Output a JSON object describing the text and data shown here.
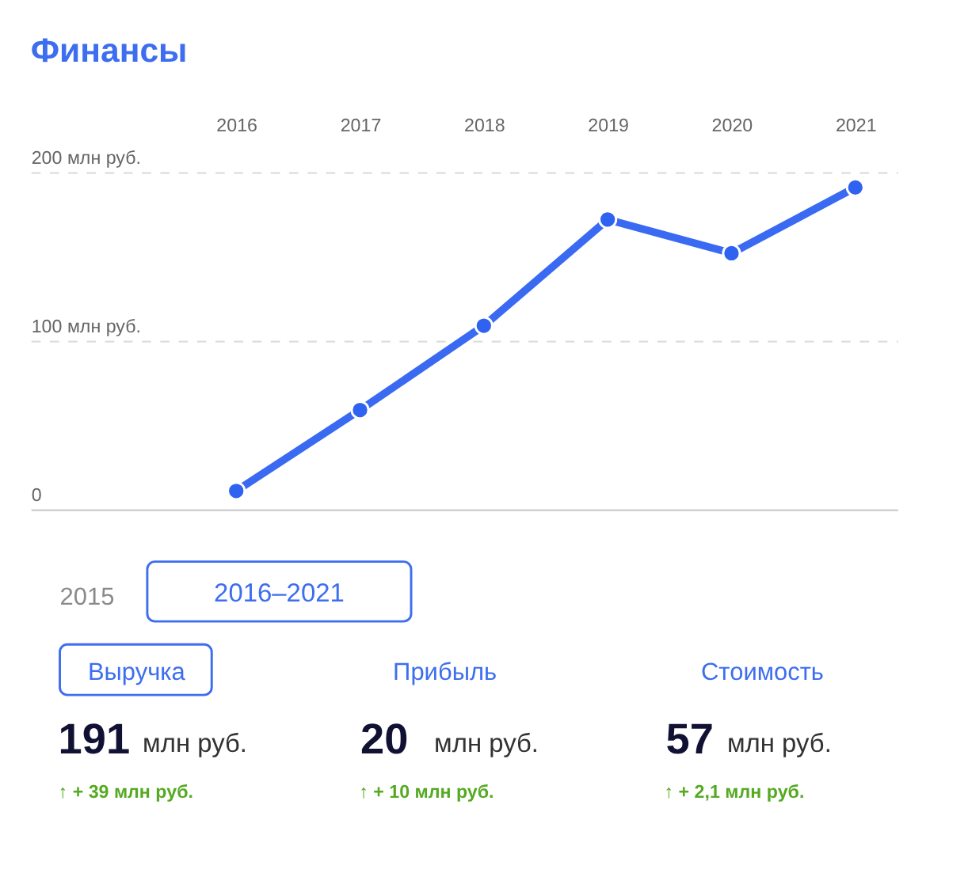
{
  "chart_data": [
    {
      "type": "line",
      "title": "Финансы",
      "categories": [
        "2016",
        "2017",
        "2018",
        "2019",
        "2020",
        "2021"
      ],
      "series": [
        {
          "color": "#2f62f0",
          "values": [
            11,
            59,
            109,
            172,
            152,
            191
          ]
        }
      ],
      "ylim": [
        0,
        200
      ],
      "yticks": [
        0,
        {
          "value": 100,
          "label": "100 млн руб."
        },
        {
          "value": 200,
          "label": "200 млн руб."
        }
      ],
      "grid": "y",
      "marker": "circle",
      "line_style": "solid"
    },
    {
      "type": "other",
      "annotations": [
        "2015",
        "2016–2021",
        "Выручка",
        "Прибыль",
        "Стоимость",
        "191",
        "млн руб.",
        "20",
        "млн руб.",
        "57",
        "млн руб.",
        "↑ + 39 млн руб.",
        "↑ + 10 млн руб.",
        "↑ + 2,1 млн руб."
      ]
    }
  ]
}
